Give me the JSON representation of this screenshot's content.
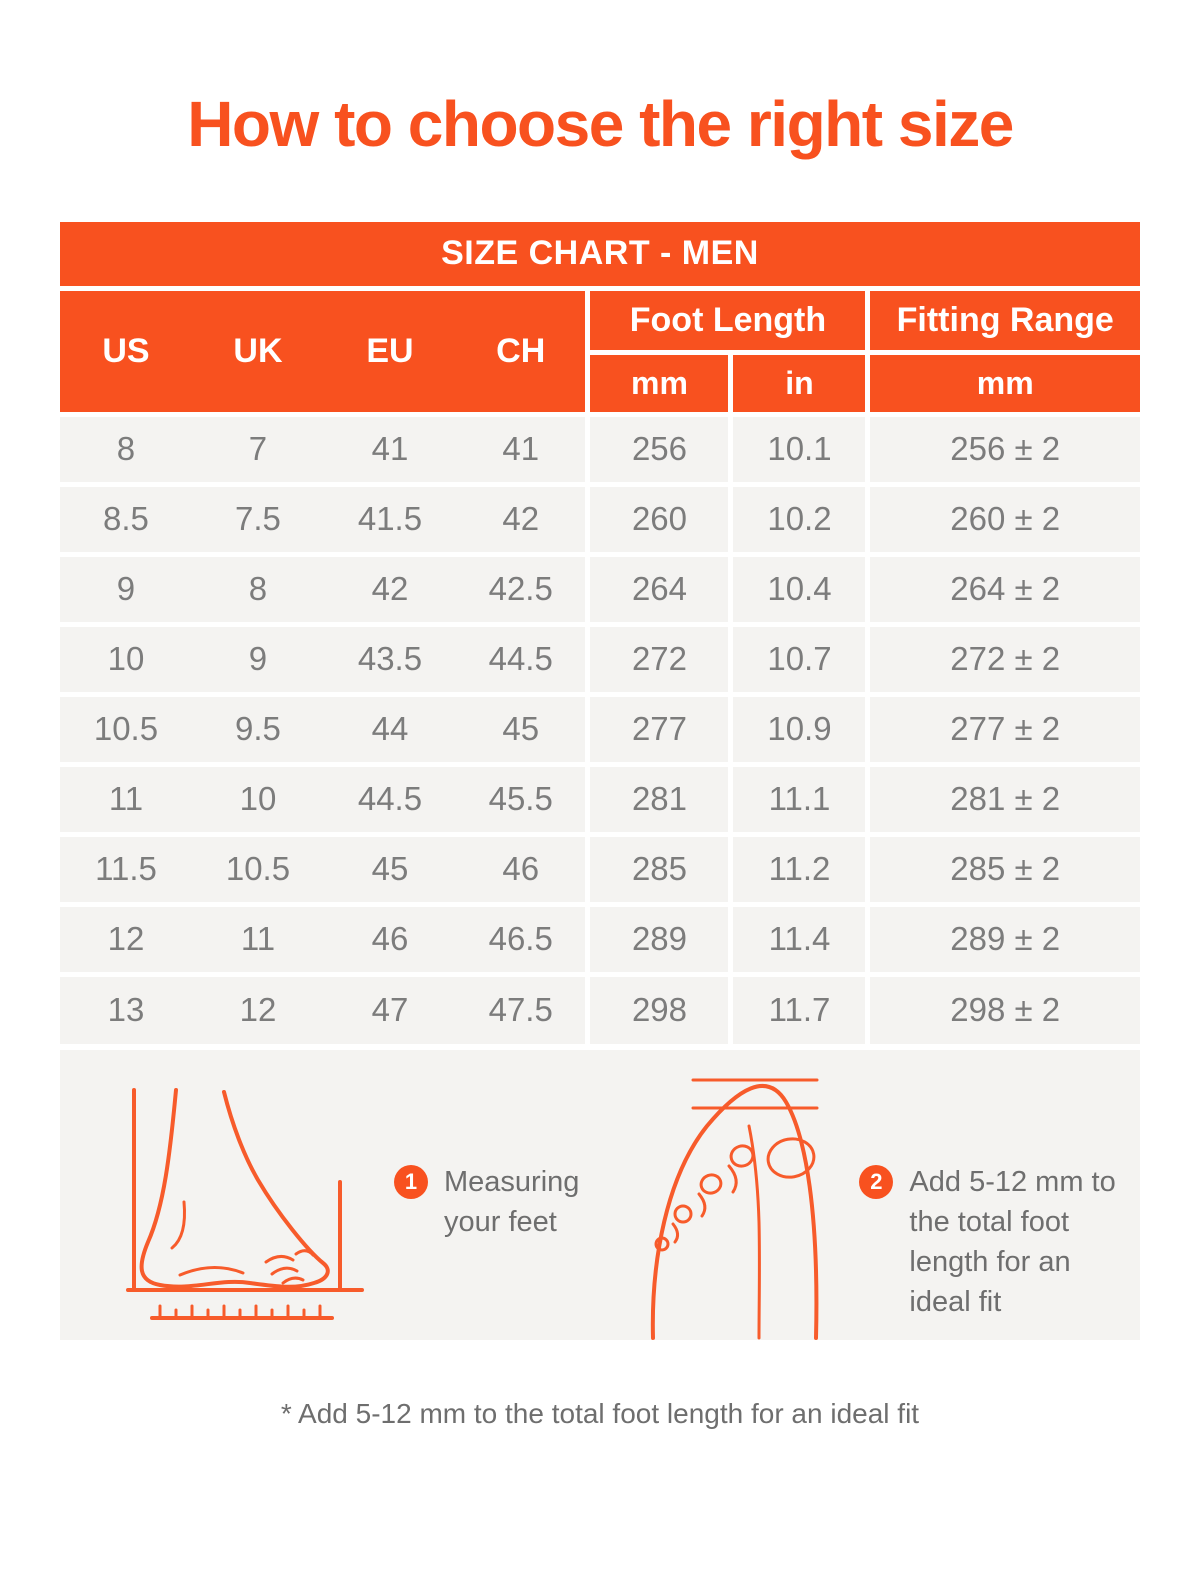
{
  "page": {
    "title": "How to choose the right size",
    "footnote": "* Add 5-12 mm to the total foot length for an ideal fit"
  },
  "colors": {
    "accent_orange": "#F8511F",
    "row_background": "#F4F3F1",
    "table_text": "#7C7C7C",
    "body_text": "#6E6E6E",
    "header_text": "#FFFFFF"
  },
  "size_chart": {
    "title": "SIZE CHART - MEN",
    "columns": [
      "US",
      "UK",
      "EU",
      "CH"
    ],
    "foot_length_label": "Foot Length",
    "fitting_range_label": "Fitting Range",
    "units": {
      "mm": "mm",
      "in": "in",
      "fitting_mm": "mm"
    },
    "rows": [
      {
        "us": "8",
        "uk": "7",
        "eu": "41",
        "ch": "41",
        "mm": "256",
        "in": "10.1",
        "fitting": "256 ± 2"
      },
      {
        "us": "8.5",
        "uk": "7.5",
        "eu": "41.5",
        "ch": "42",
        "mm": "260",
        "in": "10.2",
        "fitting": "260 ± 2"
      },
      {
        "us": "9",
        "uk": "8",
        "eu": "42",
        "ch": "42.5",
        "mm": "264",
        "in": "10.4",
        "fitting": "264 ± 2"
      },
      {
        "us": "10",
        "uk": "9",
        "eu": "43.5",
        "ch": "44.5",
        "mm": "272",
        "in": "10.7",
        "fitting": "272 ± 2"
      },
      {
        "us": "10.5",
        "uk": "9.5",
        "eu": "44",
        "ch": "45",
        "mm": "277",
        "in": "10.9",
        "fitting": "277 ± 2"
      },
      {
        "us": "11",
        "uk": "10",
        "eu": "44.5",
        "ch": "45.5",
        "mm": "281",
        "in": "11.1",
        "fitting": "281 ± 2"
      },
      {
        "us": "11.5",
        "uk": "10.5",
        "eu": "45",
        "ch": "46",
        "mm": "285",
        "in": "11.2",
        "fitting": "285 ± 2"
      },
      {
        "us": "12",
        "uk": "11",
        "eu": "46",
        "ch": "46.5",
        "mm": "289",
        "in": "11.4",
        "fitting": "289 ± 2"
      },
      {
        "us": "13",
        "uk": "12",
        "eu": "47",
        "ch": "47.5",
        "mm": "298",
        "in": "11.7",
        "fitting": "298 ± 2"
      }
    ]
  },
  "instructions": [
    {
      "number": "1",
      "lines": [
        "Measuring",
        "your feet"
      ]
    },
    {
      "number": "2",
      "lines": [
        "Add 5-12 mm to",
        "the total foot",
        "length for an",
        "ideal fit"
      ]
    }
  ]
}
